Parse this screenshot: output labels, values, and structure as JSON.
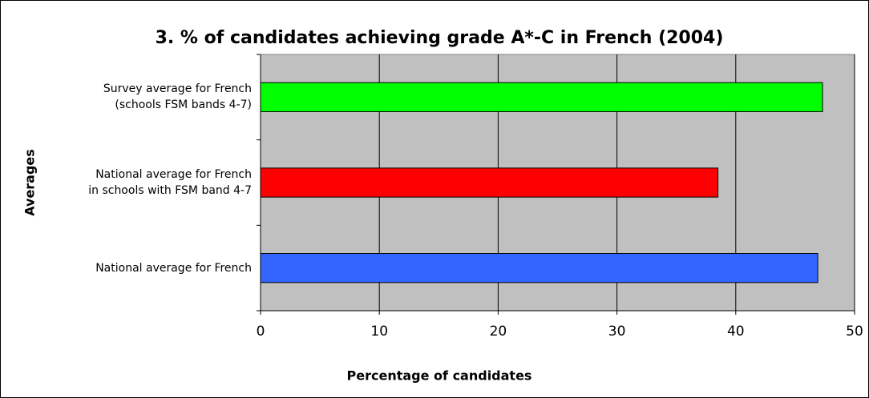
{
  "chart_data": {
    "type": "bar",
    "orientation": "horizontal",
    "title": "3. % of candidates achieving grade A*-C in French (2004)",
    "x_label": "Percentage of candidates",
    "y_label": "Averages",
    "categories": [
      "Survey average for French\n(schools FSM bands 4-7)",
      "National average for French\nin schools with FSM band 4-7",
      "National average for French"
    ],
    "values": [
      47.3,
      38.5,
      46.9
    ],
    "colors": [
      "#00ff00",
      "#ff0000",
      "#3366ff"
    ],
    "xlim": [
      0,
      50
    ],
    "xticks": [
      0,
      10,
      20,
      30,
      40,
      50
    ],
    "grid": true
  }
}
